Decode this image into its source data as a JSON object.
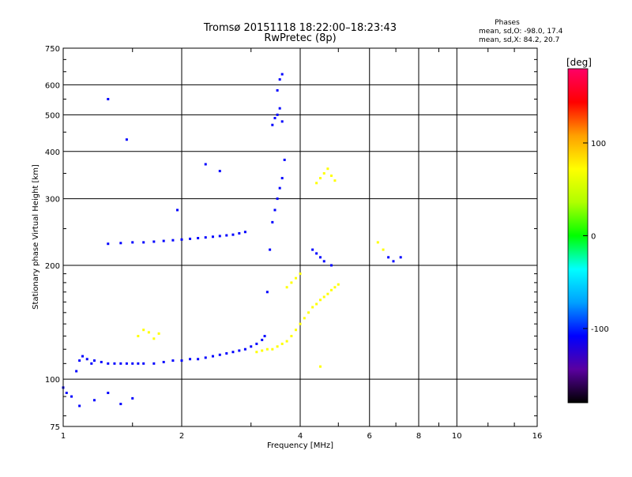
{
  "chart_data": {
    "type": "scatter",
    "title": "Tromsø 20151118 18:22:00–18:23:43",
    "subtitle": "RwPretec (8p)",
    "xlabel": "Frequency [MHz]",
    "ylabel": "Stationary phase Virtual Height [km]",
    "x_scale": "log",
    "y_scale": "log",
    "xlim": [
      1,
      16
    ],
    "ylim": [
      75,
      750
    ],
    "x_ticks": [
      1,
      2,
      4,
      6,
      8,
      10,
      16
    ],
    "x_tick_labels": [
      "1",
      "2",
      "4",
      "6",
      "8",
      "10",
      "16"
    ],
    "y_ticks": [
      75,
      100,
      200,
      300,
      400,
      500,
      600,
      750
    ],
    "y_tick_labels": [
      "75",
      "100",
      "200",
      "300",
      "400",
      "500",
      "600",
      "750"
    ],
    "grid": true,
    "stats": {
      "heading": "Phases",
      "line_o": "mean, sd,O: -98.0, 17.4",
      "line_x": "mean, sd,X:  84.2, 20.7"
    },
    "colorbar": {
      "label": "[deg]",
      "range": [
        -180,
        180
      ],
      "tick_values": [
        100,
        0,
        -100
      ],
      "tick_labels": [
        "100",
        "0",
        "-100"
      ],
      "colors": [
        "#000000",
        "#5a00a0",
        "#0000ff",
        "#00a0ff",
        "#00ffff",
        "#00ff00",
        "#b0ff00",
        "#ffff00",
        "#ffa000",
        "#ff0000",
        "#ff0066"
      ]
    },
    "series": [
      {
        "mode": "O",
        "phase_mean": -98.0,
        "phase_sd": 17.4,
        "points": [
          [
            1.0,
            95
          ],
          [
            1.02,
            92
          ],
          [
            1.05,
            90
          ],
          [
            1.08,
            105
          ],
          [
            1.1,
            112
          ],
          [
            1.12,
            115
          ],
          [
            1.15,
            113
          ],
          [
            1.18,
            110
          ],
          [
            1.2,
            112
          ],
          [
            1.25,
            111
          ],
          [
            1.3,
            110
          ],
          [
            1.35,
            110
          ],
          [
            1.4,
            110
          ],
          [
            1.45,
            110
          ],
          [
            1.5,
            110
          ],
          [
            1.55,
            110
          ],
          [
            1.6,
            110
          ],
          [
            1.7,
            110
          ],
          [
            1.8,
            111
          ],
          [
            1.9,
            112
          ],
          [
            2.0,
            112
          ],
          [
            2.1,
            113
          ],
          [
            2.2,
            113
          ],
          [
            2.3,
            114
          ],
          [
            2.4,
            115
          ],
          [
            2.5,
            116
          ],
          [
            2.6,
            117
          ],
          [
            2.7,
            118
          ],
          [
            2.8,
            119
          ],
          [
            2.9,
            120
          ],
          [
            3.0,
            122
          ],
          [
            3.1,
            124
          ],
          [
            3.2,
            127
          ],
          [
            3.25,
            130
          ],
          [
            1.3,
            228
          ],
          [
            1.4,
            229
          ],
          [
            1.5,
            230
          ],
          [
            1.6,
            230
          ],
          [
            1.7,
            231
          ],
          [
            1.8,
            232
          ],
          [
            1.9,
            233
          ],
          [
            2.0,
            234
          ],
          [
            2.1,
            235
          ],
          [
            2.2,
            236
          ],
          [
            2.3,
            237
          ],
          [
            2.4,
            238
          ],
          [
            2.5,
            239
          ],
          [
            2.6,
            240
          ],
          [
            2.7,
            241
          ],
          [
            2.8,
            243
          ],
          [
            2.9,
            245
          ],
          [
            3.3,
            170
          ],
          [
            3.35,
            220
          ],
          [
            3.4,
            260
          ],
          [
            3.45,
            280
          ],
          [
            3.5,
            300
          ],
          [
            3.55,
            320
          ],
          [
            3.6,
            340
          ],
          [
            3.65,
            380
          ],
          [
            3.4,
            470
          ],
          [
            3.45,
            490
          ],
          [
            3.5,
            500
          ],
          [
            3.55,
            520
          ],
          [
            3.6,
            480
          ],
          [
            3.5,
            580
          ],
          [
            3.55,
            620
          ],
          [
            3.6,
            640
          ],
          [
            4.3,
            220
          ],
          [
            4.4,
            215
          ],
          [
            4.5,
            210
          ],
          [
            4.6,
            205
          ],
          [
            4.8,
            200
          ],
          [
            6.7,
            210
          ],
          [
            6.9,
            205
          ],
          [
            7.2,
            210
          ],
          [
            1.1,
            85
          ],
          [
            1.2,
            88
          ],
          [
            1.3,
            92
          ],
          [
            1.4,
            86
          ],
          [
            1.5,
            89
          ],
          [
            1.3,
            550
          ],
          [
            1.45,
            430
          ],
          [
            1.95,
            280
          ],
          [
            2.3,
            370
          ],
          [
            2.5,
            355
          ]
        ]
      },
      {
        "mode": "X",
        "phase_mean": 84.2,
        "phase_sd": 20.7,
        "points": [
          [
            3.1,
            118
          ],
          [
            3.2,
            119
          ],
          [
            3.3,
            120
          ],
          [
            3.4,
            120
          ],
          [
            3.5,
            122
          ],
          [
            3.6,
            124
          ],
          [
            3.7,
            126
          ],
          [
            3.8,
            130
          ],
          [
            3.9,
            135
          ],
          [
            4.0,
            140
          ],
          [
            4.1,
            145
          ],
          [
            4.2,
            150
          ],
          [
            4.3,
            155
          ],
          [
            4.4,
            158
          ],
          [
            4.5,
            162
          ],
          [
            4.6,
            165
          ],
          [
            4.7,
            168
          ],
          [
            4.8,
            172
          ],
          [
            4.9,
            175
          ],
          [
            5.0,
            178
          ],
          [
            4.4,
            330
          ],
          [
            4.5,
            340
          ],
          [
            4.6,
            350
          ],
          [
            4.7,
            360
          ],
          [
            4.8,
            345
          ],
          [
            4.9,
            335
          ],
          [
            1.55,
            130
          ],
          [
            1.6,
            135
          ],
          [
            1.65,
            133
          ],
          [
            1.7,
            128
          ],
          [
            1.75,
            132
          ],
          [
            3.7,
            175
          ],
          [
            3.8,
            180
          ],
          [
            3.9,
            185
          ],
          [
            4.0,
            190
          ],
          [
            6.3,
            230
          ],
          [
            6.5,
            220
          ],
          [
            4.5,
            108
          ]
        ]
      }
    ]
  }
}
